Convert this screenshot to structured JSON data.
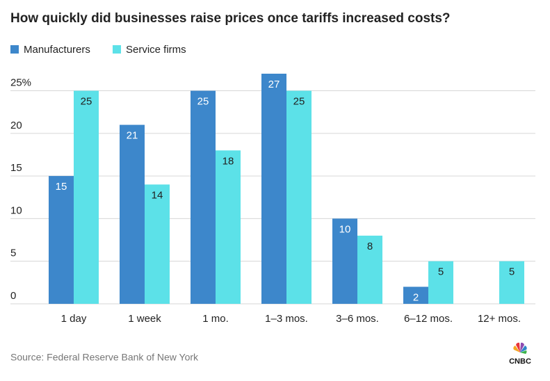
{
  "chart_data": {
    "type": "bar",
    "title": "How quickly did businesses raise prices once tariffs increased costs?",
    "categories": [
      "1 day",
      "1 week",
      "1 mo.",
      "1–3 mos.",
      "3–6 mos.",
      "6–12 mos.",
      "12+ mos."
    ],
    "series": [
      {
        "name": "Manufacturers",
        "color": "#3d87cb",
        "values": [
          15,
          21,
          25,
          27,
          10,
          2,
          null
        ]
      },
      {
        "name": "Service firms",
        "color": "#5ce1e8",
        "values": [
          25,
          14,
          18,
          25,
          8,
          5,
          5
        ]
      }
    ],
    "ylim": [
      0,
      27
    ],
    "yticks": [
      0,
      5,
      10,
      15,
      20,
      {
        "value": 25,
        "label": "25%"
      }
    ],
    "grid": true,
    "legend": "top-left",
    "source": "Source: Federal Reserve Bank of New York",
    "logo": "CNBC"
  }
}
